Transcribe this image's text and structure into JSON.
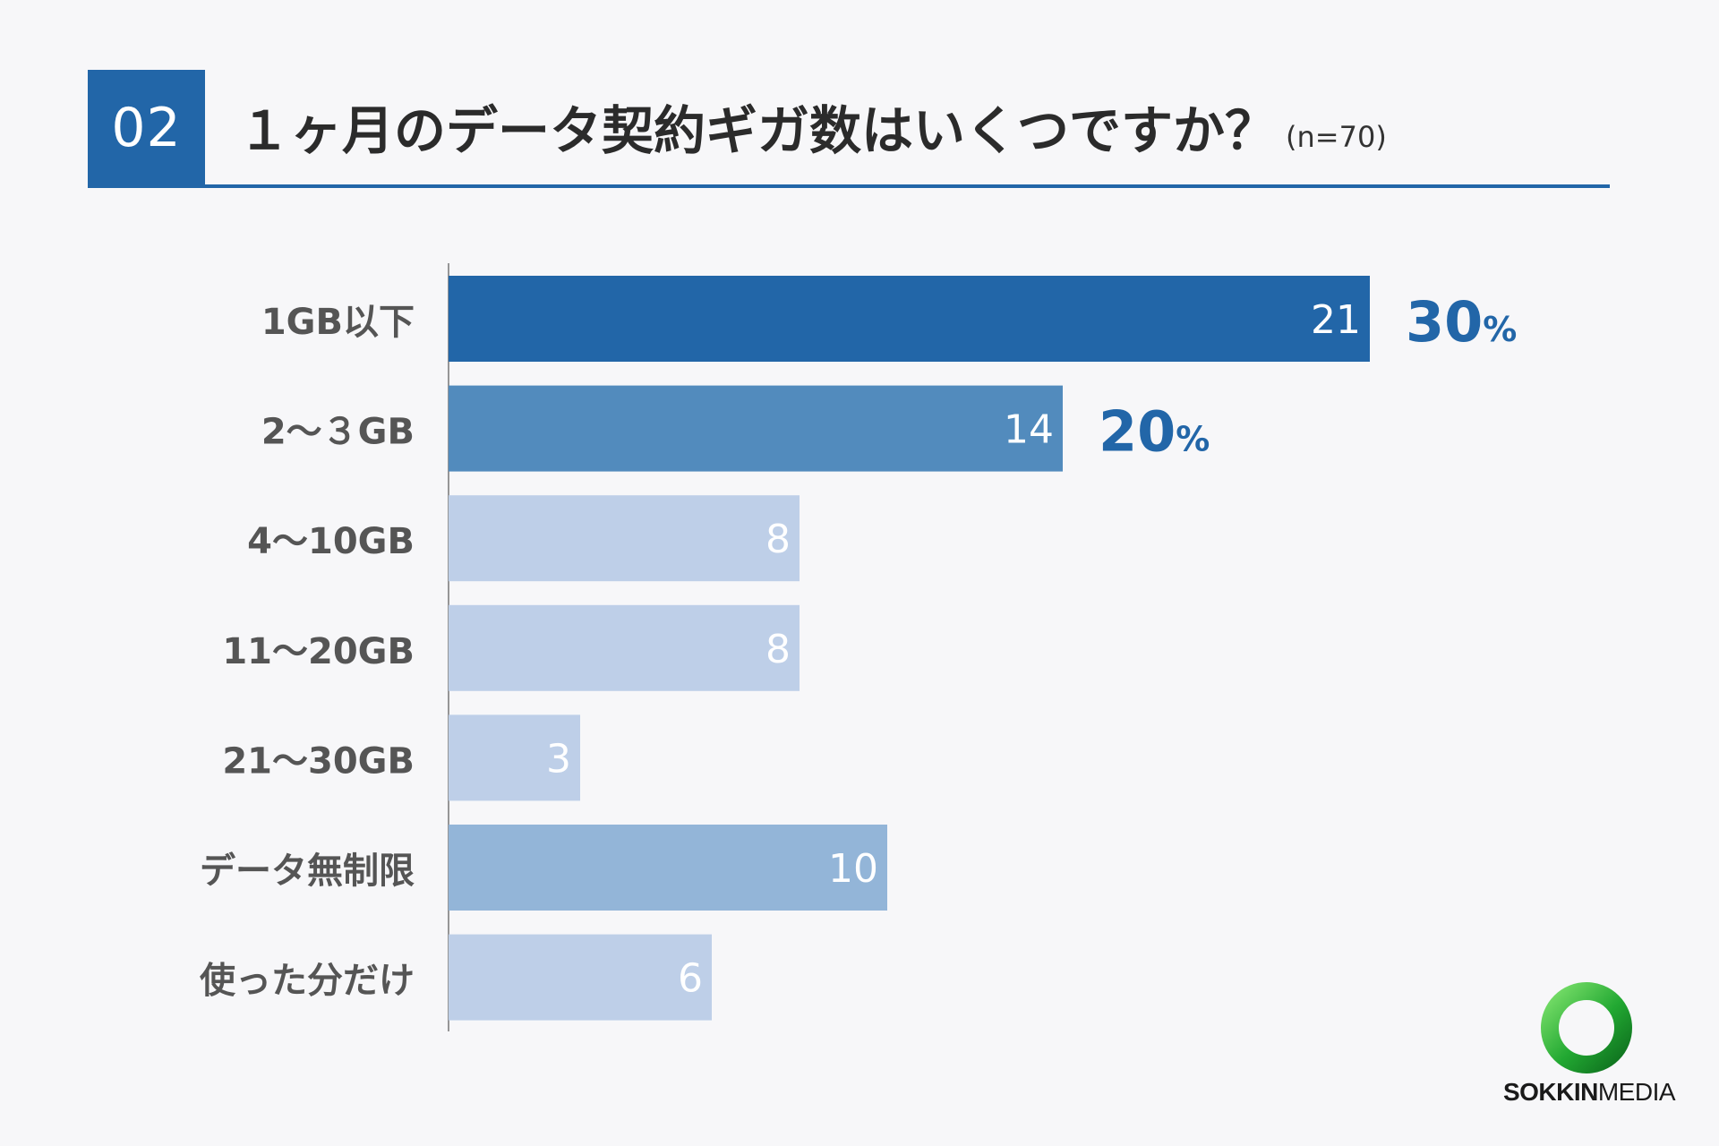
{
  "header": {
    "number": "02",
    "title": "１ヶ月のデータ契約ギガ数はいくつですか？",
    "sample": "(n=70)"
  },
  "colors": {
    "accent": "#2266a8",
    "dark": "#2266a8",
    "medium": "#528bbd",
    "light": "#becfe8",
    "lightmid": "#93b5d8",
    "label": "#555555",
    "pct": "#2266a8",
    "logo_green": "#22a832"
  },
  "chart_data": {
    "type": "bar",
    "orientation": "horizontal",
    "categories": [
      "1GB以下",
      "2～３GB",
      "4～10GB",
      "11～20GB",
      "21～30GB",
      "データ無制限",
      "使った分だけ"
    ],
    "values": [
      21,
      14,
      8,
      8,
      3,
      10,
      6
    ],
    "bar_colors": [
      "dark",
      "medium",
      "light",
      "light",
      "light",
      "lightmid",
      "light"
    ],
    "percent_labels": [
      {
        "index": 0,
        "number": "30",
        "unit": "%"
      },
      {
        "index": 1,
        "number": "20",
        "unit": "%"
      }
    ],
    "xlim": [
      0,
      21
    ],
    "title": "１ヶ月のデータ契約ギガ数はいくつですか？",
    "xlabel": "",
    "ylabel": ""
  },
  "logo": {
    "text_bold": "SOKKIN",
    "text_light": "MEDIA",
    "icon": "ring-logo-icon"
  }
}
